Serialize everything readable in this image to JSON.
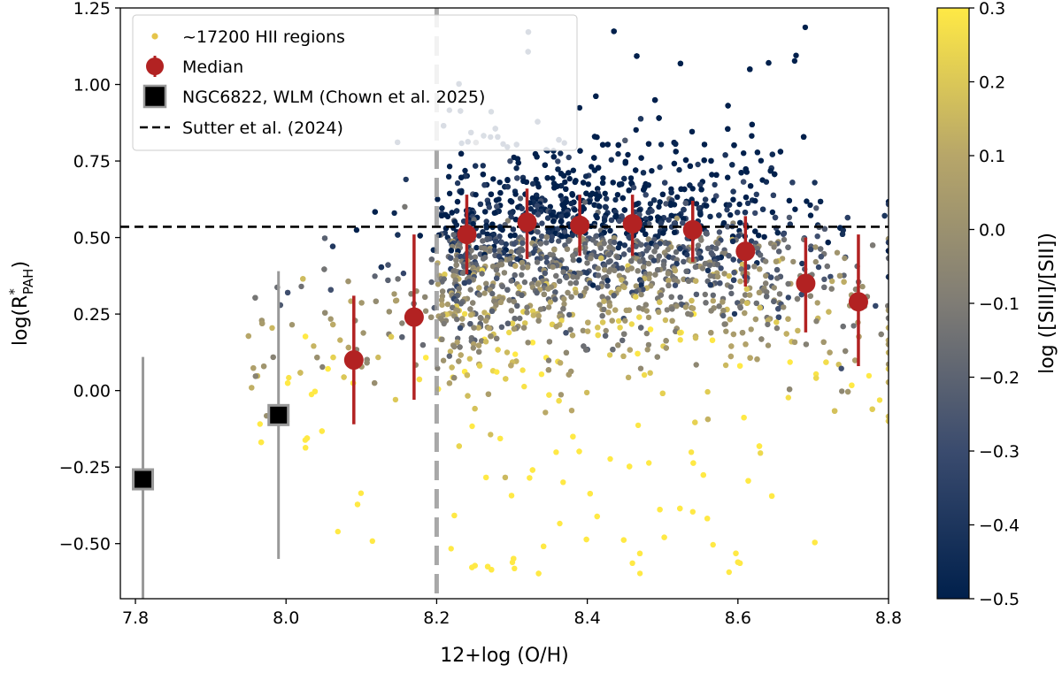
{
  "chart_data": {
    "type": "scatter",
    "xlabel": "12+log (O/H)",
    "ylabel_main": "log(R",
    "ylabel_sup": "*",
    "ylabel_sub": "PAH",
    "ylabel_tail": ")",
    "xlim": [
      7.78,
      8.8
    ],
    "ylim": [
      -0.68,
      1.25
    ],
    "x_ticks": [
      7.8,
      8.0,
      8.2,
      8.4,
      8.6,
      8.8
    ],
    "x_tick_labels": [
      "7.8",
      "8.0",
      "8.2",
      "8.4",
      "8.6",
      "8.8"
    ],
    "y_ticks": [
      -0.5,
      -0.25,
      0.0,
      0.25,
      0.5,
      0.75,
      1.0,
      1.25
    ],
    "y_tick_labels": [
      "−0.50",
      "−0.25",
      "0.00",
      "0.25",
      "0.50",
      "0.75",
      "1.00",
      "1.25"
    ],
    "colorbar": {
      "label": "log ([SIII]/[SII])",
      "range": [
        -0.5,
        0.3
      ],
      "ticks": [
        -0.5,
        -0.4,
        -0.3,
        -0.2,
        -0.1,
        0.0,
        0.1,
        0.2,
        0.3
      ],
      "tick_labels": [
        "−0.5",
        "−0.4",
        "−0.3",
        "−0.2",
        "−0.1",
        "0.0",
        "0.1",
        "0.2",
        "0.3"
      ],
      "colors": [
        "#00204c",
        "#3a4b6e",
        "#7f7c75",
        "#b7a669",
        "#ffe945"
      ]
    },
    "legend": {
      "position": "upper-left",
      "entries": [
        "~17200 HII regions",
        "Median",
        "NGC6822, WLM (Chown et al. 2025)",
        "Sutter et al. (2024)"
      ]
    },
    "series": [
      {
        "name": "Median",
        "color": "#b22222",
        "x": [
          8.09,
          8.17,
          8.24,
          8.32,
          8.39,
          8.46,
          8.54,
          8.61,
          8.69,
          8.76
        ],
        "y": [
          0.1,
          0.24,
          0.51,
          0.55,
          0.54,
          0.545,
          0.525,
          0.455,
          0.35,
          0.29
        ],
        "y_low": [
          -0.11,
          -0.03,
          0.38,
          0.43,
          0.44,
          0.44,
          0.42,
          0.34,
          0.19,
          0.08
        ],
        "y_high": [
          0.31,
          0.51,
          0.64,
          0.66,
          0.64,
          0.64,
          0.62,
          0.57,
          0.5,
          0.51
        ]
      },
      {
        "name": "NGC6822, WLM (Chown et al. 2025)",
        "color": "#000000",
        "x": [
          7.81,
          7.99
        ],
        "y": [
          -0.29,
          -0.08
        ],
        "y_low": [
          -0.68,
          -0.55
        ],
        "y_high": [
          0.11,
          0.39
        ]
      }
    ],
    "reference_lines": [
      {
        "name": "Sutter et al. (2024)",
        "orientation": "horizontal",
        "value": 0.535,
        "style": "dashed",
        "color": "#000000"
      },
      {
        "orientation": "vertical",
        "value": 8.2,
        "style": "dashed",
        "color": "#999999"
      }
    ],
    "scatter_cloud": {
      "label": "~17200 HII regions",
      "count_rendered": 3200,
      "color_by": "log ([SIII]/[SII])",
      "x_range": [
        7.95,
        8.8
      ],
      "y_range": [
        -0.68,
        1.24
      ]
    }
  }
}
